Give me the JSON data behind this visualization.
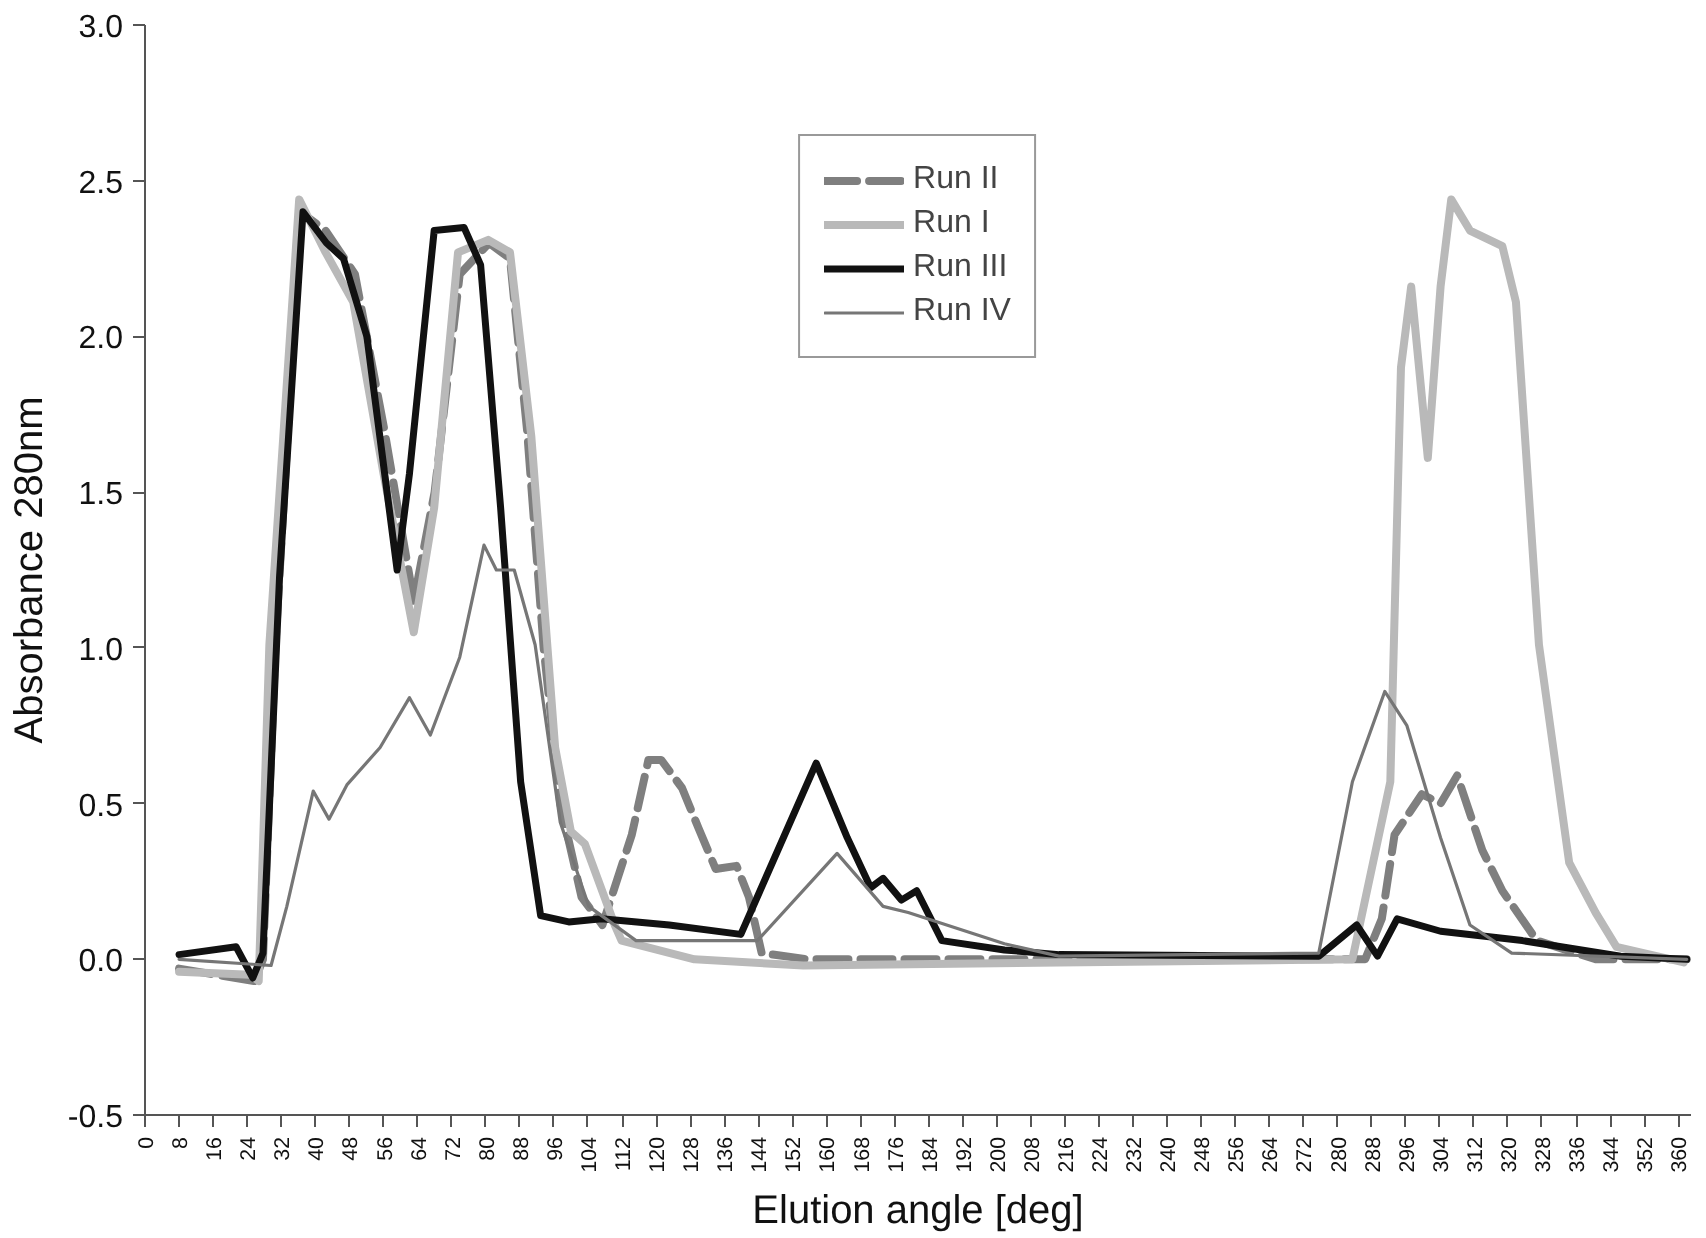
{
  "chart_data": {
    "type": "line",
    "xlabel": "Elution angle [deg]",
    "ylabel": "Absorbance 280nm",
    "xlim": [
      0,
      363
    ],
    "ylim": [
      -0.5,
      3.0
    ],
    "xticks": [
      0,
      8,
      16,
      24,
      32,
      40,
      48,
      56,
      64,
      72,
      80,
      88,
      96,
      104,
      112,
      120,
      128,
      136,
      144,
      152,
      160,
      168,
      176,
      184,
      192,
      200,
      208,
      216,
      224,
      232,
      240,
      248,
      256,
      264,
      272,
      280,
      288,
      296,
      304,
      312,
      320,
      328,
      336,
      344,
      352,
      360
    ],
    "yticks": [
      {
        "value": -0.5,
        "label": "-0.5"
      },
      {
        "value": 0,
        "label": "0.0"
      },
      {
        "value": 0.5,
        "label": "0.5"
      },
      {
        "value": 1,
        "label": "1.0"
      },
      {
        "value": 1.5,
        "label": "1.5"
      },
      {
        "value": 2,
        "label": "2.0"
      },
      {
        "value": 2.5,
        "label": "2.5"
      },
      {
        "value": 3,
        "label": "3.0"
      }
    ],
    "grid": false,
    "legend": "top",
    "marker": "none",
    "series": [
      {
        "name": "Run II",
        "color": "#7f7f7f",
        "line_style": "dashed",
        "x": [
          8,
          25.7,
          27.7,
          30.6,
          36.5,
          42.4,
          49.3,
          56.2,
          63.1,
          68,
          73.9,
          80.8,
          85.7,
          89.7,
          93.6,
          97.5,
          102.5,
          107.4,
          114.3,
          118.2,
          121.2,
          126.1,
          130,
          134,
          138.9,
          141.8,
          144.8,
          155.6,
          204.8,
          254,
          286.5,
          290.4,
          293.4,
          299.8,
          304.2,
          308.1,
          314,
          318.7,
          326.8,
          340.6,
          362
        ],
        "values": [
          -0.03,
          -0.07,
          0.0,
          1.0,
          2.4,
          2.34,
          2.2,
          1.7,
          1.15,
          1.5,
          2.2,
          2.3,
          2.25,
          1.7,
          1.0,
          0.5,
          0.2,
          0.11,
          0.4,
          0.64,
          0.64,
          0.55,
          0.42,
          0.29,
          0.3,
          0.2,
          0.02,
          0.0,
          0.0,
          0.0,
          0.0,
          0.13,
          0.4,
          0.53,
          0.5,
          0.59,
          0.35,
          0.22,
          0.06,
          0.0,
          0.0
        ]
      },
      {
        "name": "Run I",
        "color": "#b9b9b9",
        "line_style": "solid",
        "x": [
          8,
          24.7,
          26.7,
          29.2,
          36.2,
          42.4,
          48.9,
          56,
          63.1,
          67.9,
          73.5,
          80.6,
          85.7,
          90.7,
          96.3,
          100,
          103.3,
          110.3,
          111.9,
          129,
          154.6,
          214.6,
          283.5,
          292.4,
          294.9,
          297.3,
          301.2,
          304.2,
          306.7,
          311.1,
          318.7,
          321.9,
          327.3,
          334.4,
          340.6,
          345.5,
          361.3
        ],
        "values": [
          -0.04,
          -0.05,
          -0.07,
          1.01,
          2.44,
          2.27,
          2.11,
          1.56,
          1.05,
          1.45,
          2.27,
          2.31,
          2.27,
          1.68,
          0.68,
          0.41,
          0.37,
          0.11,
          0.06,
          0.0,
          -0.02,
          -0.01,
          0.0,
          0.57,
          1.9,
          2.16,
          1.61,
          2.16,
          2.44,
          2.34,
          2.29,
          2.11,
          1.01,
          0.31,
          0.15,
          0.04,
          -0.01
        ]
      },
      {
        "name": "Run III",
        "color": "#111111",
        "line_style": "solid",
        "x": [
          8,
          21.4,
          25.3,
          27.7,
          31.6,
          37.1,
          42.6,
          46.6,
          52.1,
          59.2,
          62.1,
          67.9,
          74.9,
          78.8,
          83.5,
          88.2,
          92.9,
          99.5,
          107.2,
          123.1,
          139.9,
          157.6,
          164.9,
          170.4,
          173.3,
          177.6,
          181.2,
          187.1,
          201.8,
          214.6,
          275.6,
          284.5,
          289.4,
          294,
          304.2,
          323.4,
          346.5,
          362
        ],
        "values": [
          0.015,
          0.04,
          -0.06,
          0.02,
          1.23,
          2.4,
          2.3,
          2.25,
          2.0,
          1.25,
          1.56,
          2.34,
          2.35,
          2.23,
          1.45,
          0.57,
          0.14,
          0.12,
          0.13,
          0.11,
          0.08,
          0.63,
          0.39,
          0.23,
          0.26,
          0.19,
          0.22,
          0.06,
          0.03,
          0.015,
          0.01,
          0.11,
          0.01,
          0.13,
          0.09,
          0.06,
          0.01,
          0.0
        ]
      },
      {
        "name": "Run IV",
        "color": "#767676",
        "line_style": "solid",
        "x": [
          8,
          29.6,
          33.3,
          39.5,
          43.2,
          47.4,
          55.2,
          62.1,
          67,
          73.9,
          79.6,
          82.5,
          86.7,
          91.6,
          97.5,
          104.2,
          115.3,
          138.9,
          143.8,
          162.5,
          173.3,
          179.2,
          201.8,
          214.6,
          275.6,
          283.5,
          291.1,
          296.3,
          304.2,
          311.1,
          320.9,
          362
        ],
        "values": [
          0.0,
          -0.02,
          0.17,
          0.54,
          0.45,
          0.56,
          0.68,
          0.84,
          0.72,
          0.97,
          1.33,
          1.25,
          1.25,
          1.01,
          0.44,
          0.17,
          0.06,
          0.06,
          0.06,
          0.34,
          0.17,
          0.15,
          0.05,
          0.01,
          0.02,
          0.57,
          0.86,
          0.75,
          0.39,
          0.11,
          0.02,
          0.0
        ]
      }
    ]
  }
}
